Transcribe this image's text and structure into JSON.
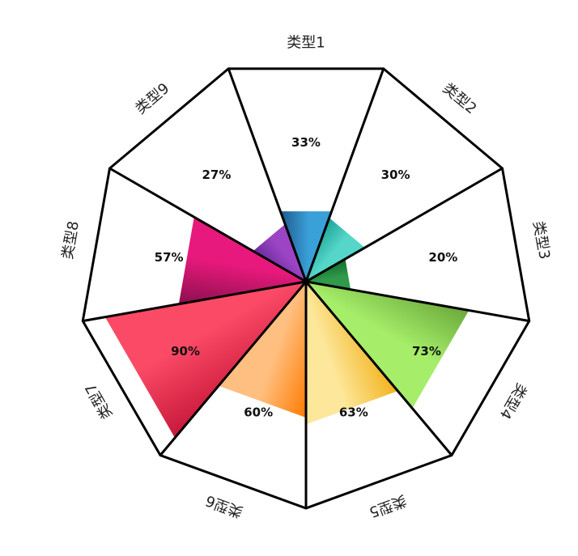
{
  "chart_data": {
    "type": "pie",
    "subtype": "radial-polygon-percentage",
    "categories": [
      "类型1",
      "类型2",
      "类型3",
      "类型4",
      "类型5",
      "类型6",
      "类型7",
      "类型8",
      "类型9"
    ],
    "values": [
      33,
      30,
      20,
      73,
      63,
      60,
      90,
      57,
      27
    ],
    "value_labels": [
      "33%",
      "30%",
      "20%",
      "73%",
      "63%",
      "60%",
      "90%",
      "57%",
      "27%"
    ],
    "max": 100,
    "colors": [
      [
        "#1f5a8c",
        "#3aa0d8"
      ],
      [
        "#1aa396",
        "#55d6c8"
      ],
      [
        "#136b2f",
        "#2f9a4a"
      ],
      [
        "#6aa83a",
        "#a6ee6a"
      ],
      [
        "#f2b21c",
        "#fde79a"
      ],
      [
        "#ff7a00",
        "#ffbf80"
      ],
      [
        "#c8183a",
        "#fb4a66"
      ],
      [
        "#8a0f4e",
        "#e8197c"
      ],
      [
        "#6b2a9a",
        "#9b45c4"
      ]
    ],
    "outline_color": "#000000"
  }
}
